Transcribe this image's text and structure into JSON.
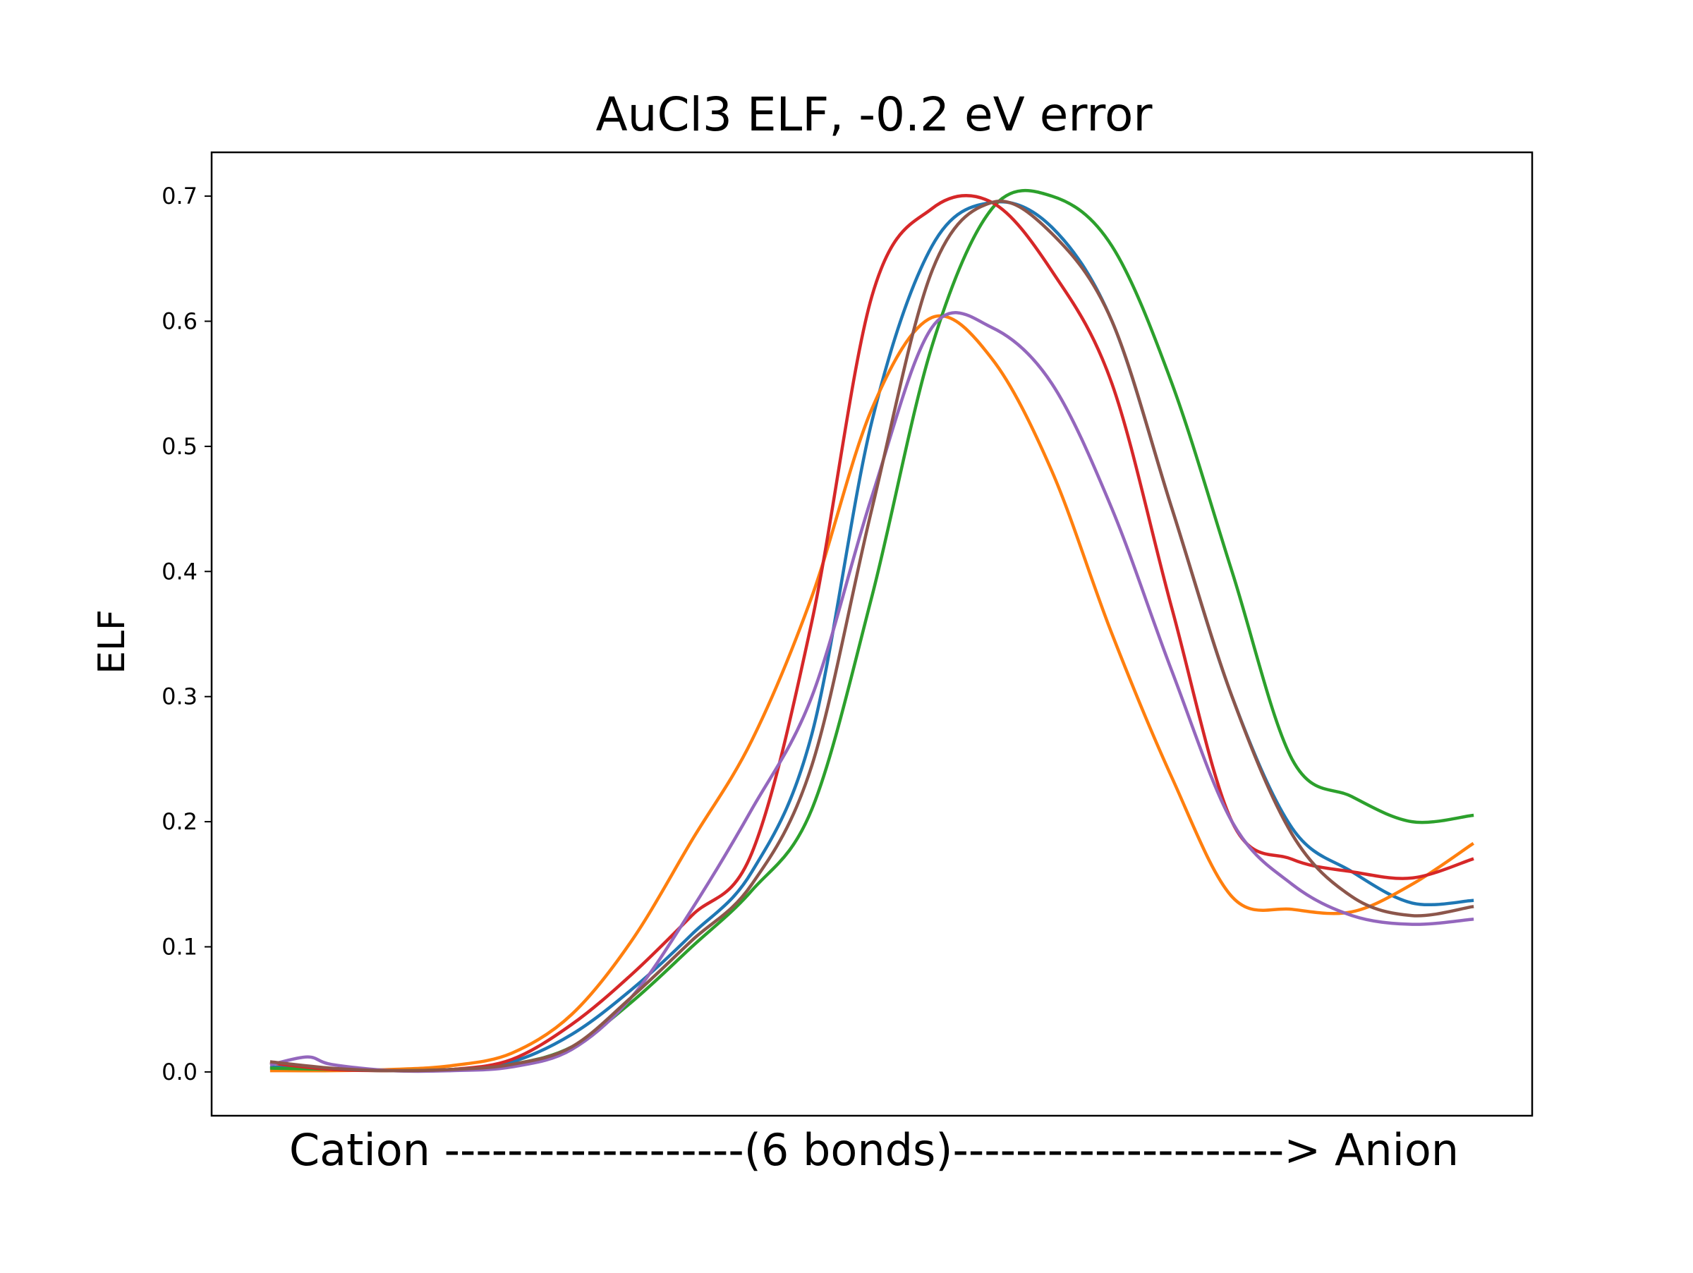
{
  "chart_data": {
    "type": "line",
    "title": "AuCl3 ELF, -0.2 eV error",
    "xlabel": "Cation -------------------(6 bonds)---------------------> Anion",
    "ylabel": "ELF",
    "ylim": [
      -0.035,
      0.735
    ],
    "xlim": [
      -0.05,
      1.05
    ],
    "yticks": [
      "0.0",
      "0.1",
      "0.2",
      "0.3",
      "0.4",
      "0.5",
      "0.6",
      "0.7"
    ],
    "grid": false,
    "legend": "none",
    "series": [
      {
        "color": "#1f77b4",
        "x": [
          0.0,
          0.05,
          0.1,
          0.15,
          0.2,
          0.25,
          0.3,
          0.35,
          0.4,
          0.45,
          0.5,
          0.55,
          0.6,
          0.65,
          0.7,
          0.75,
          0.8,
          0.85,
          0.9,
          0.95,
          1.0
        ],
        "y": [
          0.004,
          0.002,
          0.001,
          0.002,
          0.008,
          0.03,
          0.066,
          0.11,
          0.16,
          0.27,
          0.52,
          0.66,
          0.695,
          0.675,
          0.6,
          0.45,
          0.3,
          0.195,
          0.16,
          0.135,
          0.137
        ]
      },
      {
        "color": "#ff7f0e",
        "x": [
          0.0,
          0.05,
          0.1,
          0.15,
          0.2,
          0.25,
          0.3,
          0.35,
          0.4,
          0.45,
          0.5,
          0.55,
          0.6,
          0.65,
          0.7,
          0.75,
          0.8,
          0.85,
          0.9,
          0.95,
          1.0
        ],
        "y": [
          0.001,
          0.001,
          0.002,
          0.005,
          0.015,
          0.046,
          0.105,
          0.185,
          0.265,
          0.38,
          0.53,
          0.603,
          0.57,
          0.48,
          0.35,
          0.235,
          0.14,
          0.13,
          0.128,
          0.15,
          0.182
        ]
      },
      {
        "color": "#2ca02c",
        "x": [
          0.0,
          0.05,
          0.1,
          0.15,
          0.2,
          0.25,
          0.3,
          0.35,
          0.4,
          0.45,
          0.5,
          0.55,
          0.6,
          0.65,
          0.7,
          0.75,
          0.8,
          0.85,
          0.9,
          0.95,
          1.0
        ],
        "y": [
          0.003,
          0.002,
          0.001,
          0.002,
          0.006,
          0.02,
          0.056,
          0.1,
          0.145,
          0.21,
          0.38,
          0.58,
          0.69,
          0.7,
          0.66,
          0.55,
          0.4,
          0.25,
          0.22,
          0.2,
          0.205
        ]
      },
      {
        "color": "#d62728",
        "x": [
          0.0,
          0.05,
          0.1,
          0.15,
          0.2,
          0.25,
          0.3,
          0.35,
          0.4,
          0.45,
          0.5,
          0.55,
          0.6,
          0.65,
          0.7,
          0.75,
          0.8,
          0.85,
          0.9,
          0.95,
          1.0
        ],
        "y": [
          0.007,
          0.002,
          0.001,
          0.002,
          0.01,
          0.038,
          0.078,
          0.125,
          0.175,
          0.36,
          0.62,
          0.69,
          0.695,
          0.64,
          0.55,
          0.37,
          0.2,
          0.17,
          0.16,
          0.155,
          0.17
        ]
      },
      {
        "color": "#9467bd",
        "x": [
          0.0,
          0.03,
          0.05,
          0.1,
          0.15,
          0.2,
          0.25,
          0.3,
          0.35,
          0.4,
          0.45,
          0.5,
          0.55,
          0.6,
          0.65,
          0.7,
          0.75,
          0.8,
          0.85,
          0.9,
          0.95,
          1.0
        ],
        "y": [
          0.006,
          0.012,
          0.006,
          0.001,
          0.001,
          0.004,
          0.018,
          0.06,
          0.13,
          0.21,
          0.3,
          0.46,
          0.595,
          0.595,
          0.55,
          0.45,
          0.32,
          0.2,
          0.15,
          0.125,
          0.118,
          0.122
        ]
      },
      {
        "color": "#8c564b",
        "x": [
          0.0,
          0.05,
          0.1,
          0.15,
          0.2,
          0.25,
          0.3,
          0.35,
          0.4,
          0.45,
          0.5,
          0.55,
          0.6,
          0.65,
          0.7,
          0.75,
          0.8,
          0.85,
          0.9,
          0.95,
          1.0
        ],
        "y": [
          0.008,
          0.003,
          0.001,
          0.002,
          0.006,
          0.02,
          0.06,
          0.105,
          0.15,
          0.245,
          0.45,
          0.64,
          0.695,
          0.67,
          0.6,
          0.45,
          0.3,
          0.19,
          0.14,
          0.125,
          0.132
        ]
      }
    ]
  }
}
